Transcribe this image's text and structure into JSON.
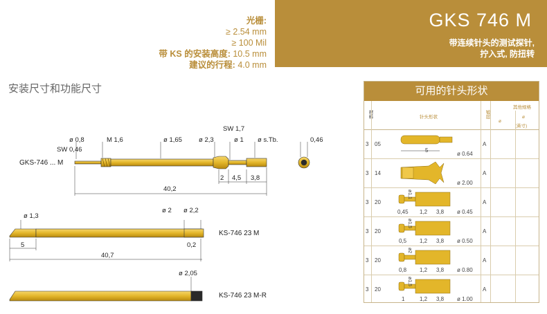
{
  "specs": {
    "grid_label": "光栅:",
    "grid_mm": "≥ 2.54 mm",
    "grid_mil": "≥ 100 Mil",
    "height_label": "带 KS 的安装高度:",
    "height_val": "10.5 mm",
    "stroke_label": "建议的行程:",
    "stroke_val": "4.0 mm"
  },
  "header": {
    "model": "GKS 746 M",
    "desc_line1": "带连续针头的测试探针,",
    "desc_line2": "拧入式, 防扭转"
  },
  "section_title": "安装尺寸和功能尺寸",
  "drawing1": {
    "label": "GKS-746 ... M",
    "d1": "ø 0,8",
    "d2": "SW 0,46",
    "d3": "M 1,6",
    "d4": "ø 1,65",
    "d5": "ø 2,3",
    "d6": "SW 1,7",
    "d7": "ø 1",
    "d8": "ø s.Tb.",
    "d9": "0,46",
    "l1": "2",
    "l2": "4,5",
    "l3": "3,8",
    "l4": "40,2"
  },
  "drawing2": {
    "label": "KS-746 23 M",
    "d1": "ø 1,3",
    "d2": "ø 2",
    "d3": "ø 2,2",
    "l1": "5",
    "l2": "0,2",
    "l3": "40,7"
  },
  "drawing3": {
    "label": "KS-746 23 M-R",
    "d1": "ø 2,05"
  },
  "table": {
    "title": "可用的针头形状",
    "col_material": "材料",
    "col_shape": "针头形状",
    "col_coating": "镀层",
    "col_other": "其他规格",
    "col_dia": "ø",
    "col_dia2": "ø",
    "col_dia2_note": "(英寸)",
    "rows": [
      {
        "mat": "3",
        "no": "05",
        "dims": [
          "5"
        ],
        "dia": "ø 0.64",
        "coat": "A"
      },
      {
        "mat": "3",
        "no": "14",
        "dims": [],
        "dia": "ø 2.00",
        "coat": "A"
      },
      {
        "mat": "3",
        "no": "20",
        "dims": [
          "ø1,1",
          "0,45",
          "1,2",
          "3,8"
        ],
        "dia": "ø 0.45",
        "coat": "A"
      },
      {
        "mat": "3",
        "no": "20",
        "dims": [
          "ø1,5",
          "0,5",
          "1,2",
          "3,8"
        ],
        "dia": "ø 0.50",
        "coat": "A"
      },
      {
        "mat": "3",
        "no": "20",
        "dims": [
          "ø2",
          "0,8",
          "1,2",
          "3,8"
        ],
        "dia": "ø 0.80",
        "coat": "A"
      },
      {
        "mat": "3",
        "no": "20",
        "dims": [
          "ø1,5",
          "1",
          "1,2",
          "3,8"
        ],
        "dia": "ø 1.00",
        "coat": "A"
      }
    ]
  },
  "colors": {
    "gold": "#b98e3a",
    "brass": "#e3b62a",
    "brass_dark": "#b8890f"
  }
}
